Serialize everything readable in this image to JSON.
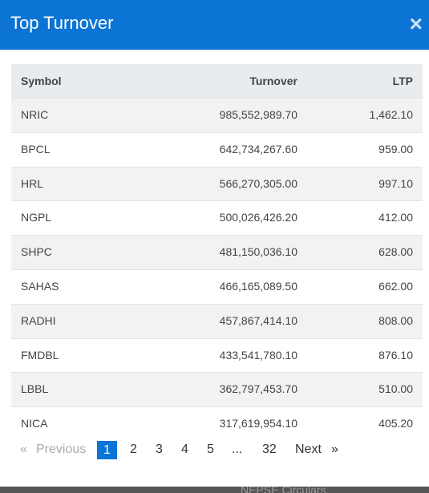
{
  "header": {
    "title": "Top Turnover",
    "close": "×"
  },
  "table": {
    "columns": [
      "Symbol",
      "Turnover",
      "LTP"
    ],
    "rows": [
      [
        "NRIC",
        "985,552,989.70",
        "1,462.10"
      ],
      [
        "BPCL",
        "642,734,267.60",
        "959.00"
      ],
      [
        "HRL",
        "566,270,305.00",
        "997.10"
      ],
      [
        "NGPL",
        "500,026,426.20",
        "412.00"
      ],
      [
        "SHPC",
        "481,150,036.10",
        "628.00"
      ],
      [
        "SAHAS",
        "466,165,089.50",
        "662.00"
      ],
      [
        "RADHI",
        "457,867,414.10",
        "808.00"
      ],
      [
        "FMDBL",
        "433,541,780.10",
        "876.10"
      ],
      [
        "LBBL",
        "362,797,453.70",
        "510.00"
      ],
      [
        "NICA",
        "317,619,954.10",
        "405.20"
      ]
    ]
  },
  "pagination": {
    "previous": [
      "«",
      "Previous"
    ],
    "pages": [
      "1",
      "2",
      "3",
      "4",
      "5",
      "...",
      "32"
    ],
    "next": [
      "Next",
      "»"
    ]
  },
  "background": {
    "text": "NEPSE Circulars"
  }
}
